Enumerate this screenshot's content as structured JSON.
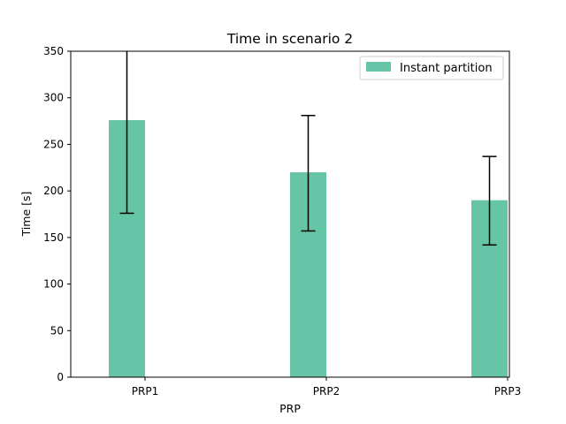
{
  "chart_data": {
    "type": "bar",
    "title": "Time in scenario 2",
    "xlabel": "PRP",
    "ylabel": "Time [s]",
    "categories": [
      "PRP1",
      "PRP2",
      "PRP3"
    ],
    "series": [
      {
        "name": "Instant partition",
        "values": [
          276,
          220,
          190
        ],
        "error_low": [
          176,
          157,
          142
        ],
        "error_high": [
          350,
          281,
          237
        ],
        "color": "#66c5a6"
      }
    ],
    "ylim": [
      0,
      350
    ],
    "yticks": [
      0,
      50,
      100,
      150,
      200,
      250,
      300,
      350
    ],
    "grid": false,
    "legend_position": "top-right"
  }
}
